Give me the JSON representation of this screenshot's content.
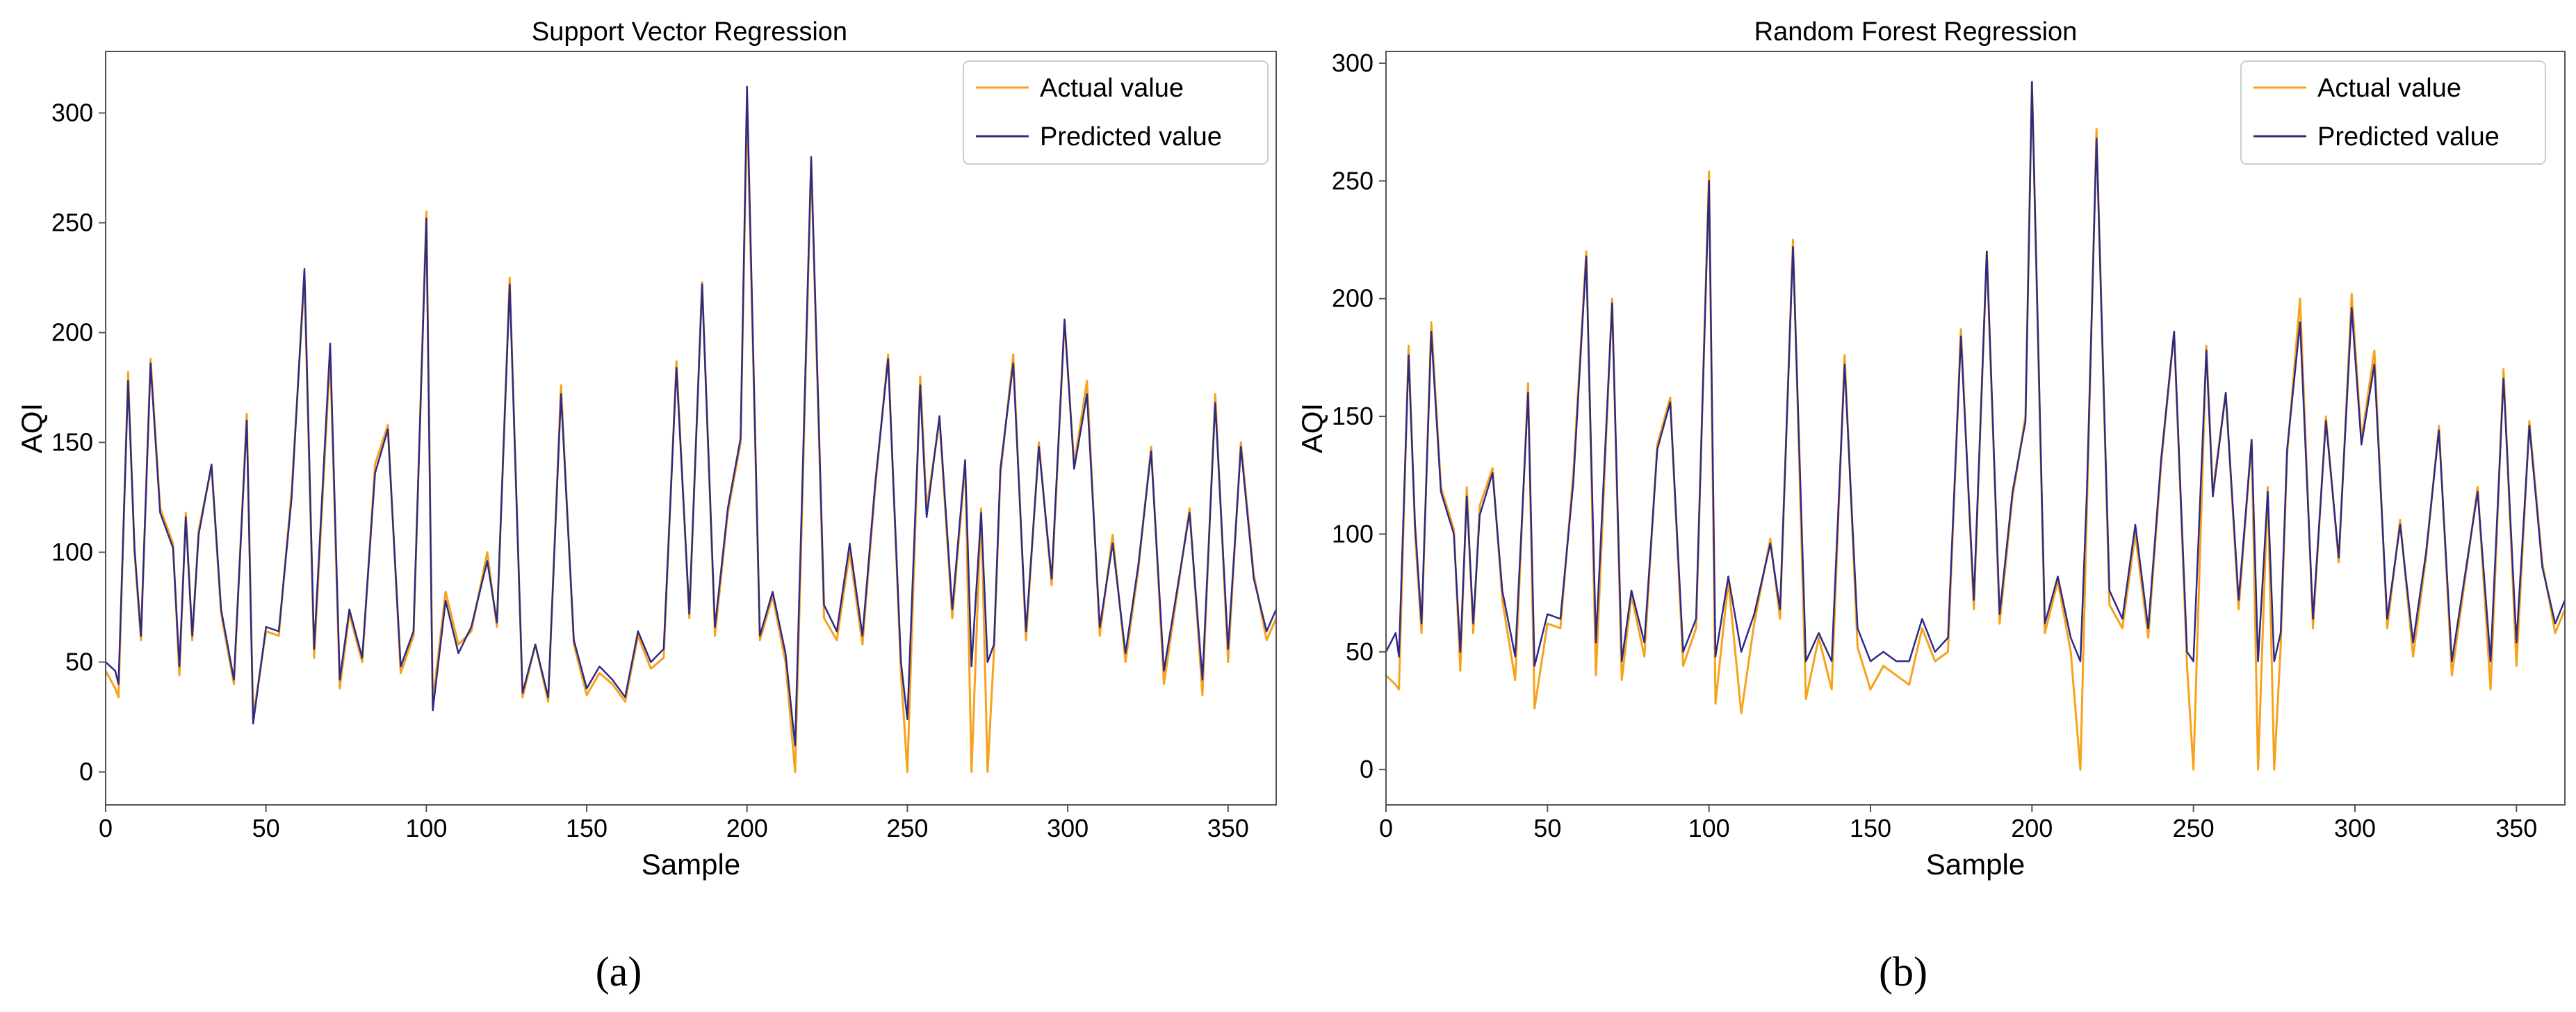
{
  "figure": {
    "labels": [
      "(a)",
      "(b)"
    ]
  },
  "colors": {
    "actual": "#F7A21B",
    "predicted": "#2E2A86"
  },
  "chart_data": [
    {
      "type": "line",
      "title": "Support Vector Regression",
      "xlabel": "Sample",
      "ylabel": "AQI",
      "xlim": [
        0,
        365
      ],
      "ylim": [
        -15,
        328
      ],
      "xticks": [
        0,
        50,
        100,
        150,
        200,
        250,
        300,
        350
      ],
      "yticks": [
        0,
        50,
        100,
        150,
        200,
        250,
        300
      ],
      "legend": {
        "position": "top-right",
        "entries": [
          "Actual value",
          "Predicted value"
        ]
      },
      "x": [
        0,
        3,
        4,
        7,
        9,
        11,
        14,
        17,
        21,
        23,
        25,
        27,
        29,
        33,
        36,
        40,
        44,
        46,
        50,
        54,
        58,
        62,
        65,
        70,
        73,
        76,
        80,
        84,
        88,
        92,
        96,
        100,
        102,
        106,
        110,
        114,
        119,
        122,
        126,
        130,
        134,
        138,
        142,
        146,
        150,
        154,
        158,
        162,
        166,
        170,
        174,
        178,
        182,
        186,
        190,
        194,
        198,
        200,
        204,
        208,
        212,
        215,
        217,
        220,
        224,
        228,
        232,
        236,
        240,
        244,
        248,
        250,
        254,
        256,
        260,
        264,
        268,
        270,
        273,
        275,
        277,
        279,
        283,
        287,
        291,
        295,
        299,
        302,
        306,
        310,
        314,
        318,
        322,
        326,
        330,
        334,
        338,
        342,
        346,
        350,
        354,
        358,
        362,
        365
      ],
      "series": [
        {
          "name": "Actual value",
          "values": [
            46,
            38,
            34,
            182,
            100,
            60,
            188,
            120,
            104,
            44,
            118,
            60,
            110,
            139,
            72,
            40,
            163,
            25,
            64,
            62,
            128,
            225,
            52,
            190,
            38,
            72,
            50,
            140,
            158,
            45,
            62,
            255,
            32,
            82,
            58,
            64,
            100,
            66,
            225,
            34,
            58,
            32,
            176,
            58,
            35,
            45,
            40,
            32,
            62,
            47,
            52,
            187,
            70,
            223,
            62,
            118,
            150,
            305,
            60,
            80,
            50,
            0,
            110,
            278,
            70,
            60,
            100,
            58,
            130,
            190,
            45,
            0,
            180,
            120,
            160,
            70,
            140,
            0,
            120,
            0,
            55,
            135,
            190,
            60,
            150,
            85,
            205,
            140,
            178,
            62,
            108,
            50,
            92,
            148,
            40,
            80,
            120,
            35,
            172,
            50,
            150,
            90,
            60,
            70
          ]
        },
        {
          "name": "Predicted value",
          "values": [
            50,
            46,
            40,
            178,
            102,
            62,
            186,
            118,
            102,
            48,
            116,
            62,
            108,
            140,
            74,
            42,
            160,
            22,
            66,
            64,
            125,
            229,
            56,
            195,
            42,
            74,
            52,
            136,
            156,
            48,
            64,
            252,
            28,
            78,
            54,
            66,
            96,
            68,
            222,
            36,
            58,
            34,
            172,
            60,
            38,
            48,
            42,
            34,
            64,
            50,
            56,
            184,
            72,
            222,
            66,
            120,
            152,
            312,
            62,
            82,
            54,
            12,
            118,
            280,
            76,
            64,
            104,
            62,
            132,
            188,
            50,
            24,
            176,
            116,
            162,
            74,
            142,
            48,
            118,
            50,
            58,
            138,
            186,
            64,
            148,
            88,
            206,
            138,
            172,
            66,
            104,
            54,
            94,
            146,
            46,
            82,
            118,
            42,
            168,
            56,
            148,
            88,
            64,
            74
          ]
        }
      ]
    },
    {
      "type": "line",
      "title": "Random Forest Regression",
      "xlabel": "Sample",
      "ylabel": "AQI",
      "xlim": [
        0,
        365
      ],
      "ylim": [
        -15,
        305
      ],
      "xticks": [
        0,
        50,
        100,
        150,
        200,
        250,
        300,
        350
      ],
      "yticks": [
        0,
        50,
        100,
        150,
        200,
        250,
        300
      ],
      "legend": {
        "position": "top-right",
        "entries": [
          "Actual value",
          "Predicted value"
        ]
      },
      "x": [
        0,
        3,
        4,
        7,
        9,
        11,
        14,
        17,
        21,
        23,
        25,
        27,
        29,
        33,
        36,
        40,
        44,
        46,
        50,
        54,
        58,
        62,
        65,
        70,
        73,
        76,
        80,
        84,
        88,
        92,
        96,
        100,
        102,
        106,
        110,
        114,
        119,
        122,
        126,
        130,
        134,
        138,
        142,
        146,
        150,
        154,
        158,
        162,
        166,
        170,
        174,
        178,
        182,
        186,
        190,
        194,
        198,
        200,
        204,
        208,
        212,
        215,
        217,
        220,
        224,
        228,
        232,
        236,
        240,
        244,
        248,
        250,
        254,
        256,
        260,
        264,
        268,
        270,
        273,
        275,
        277,
        279,
        283,
        287,
        291,
        295,
        299,
        302,
        306,
        310,
        314,
        318,
        322,
        326,
        330,
        334,
        338,
        342,
        346,
        350,
        354,
        358,
        362,
        365
      ],
      "series": [
        {
          "name": "Actual value",
          "values": [
            40,
            36,
            34,
            180,
            100,
            58,
            190,
            120,
            102,
            42,
            120,
            58,
            112,
            128,
            72,
            38,
            164,
            26,
            62,
            60,
            126,
            220,
            40,
            200,
            38,
            74,
            48,
            138,
            158,
            44,
            60,
            254,
            28,
            80,
            24,
            62,
            98,
            64,
            225,
            30,
            56,
            34,
            176,
            52,
            34,
            44,
            40,
            36,
            60,
            46,
            50,
            187,
            68,
            220,
            62,
            116,
            150,
            292,
            58,
            80,
            50,
            0,
            110,
            272,
            70,
            60,
            100,
            56,
            130,
            186,
            44,
            0,
            180,
            118,
            160,
            68,
            140,
            0,
            120,
            0,
            52,
            134,
            200,
            60,
            150,
            88,
            202,
            140,
            178,
            60,
            106,
            48,
            90,
            146,
            40,
            80,
            120,
            34,
            170,
            44,
            148,
            88,
            58,
            68
          ]
        },
        {
          "name": "Predicted value",
          "values": [
            50,
            58,
            48,
            176,
            104,
            62,
            186,
            118,
            100,
            50,
            116,
            62,
            108,
            126,
            76,
            48,
            160,
            44,
            66,
            64,
            122,
            218,
            54,
            198,
            46,
            76,
            54,
            136,
            156,
            50,
            64,
            250,
            48,
            82,
            50,
            66,
            96,
            68,
            222,
            46,
            58,
            46,
            172,
            60,
            46,
            50,
            46,
            46,
            64,
            50,
            56,
            184,
            72,
            220,
            66,
            118,
            148,
            292,
            62,
            82,
            56,
            46,
            118,
            268,
            76,
            64,
            104,
            60,
            132,
            186,
            50,
            46,
            178,
            116,
            160,
            72,
            140,
            46,
            118,
            46,
            58,
            136,
            190,
            64,
            148,
            90,
            196,
            138,
            172,
            64,
            104,
            54,
            92,
            144,
            46,
            82,
            118,
            46,
            166,
            54,
            146,
            86,
            62,
            72
          ]
        }
      ]
    }
  ]
}
